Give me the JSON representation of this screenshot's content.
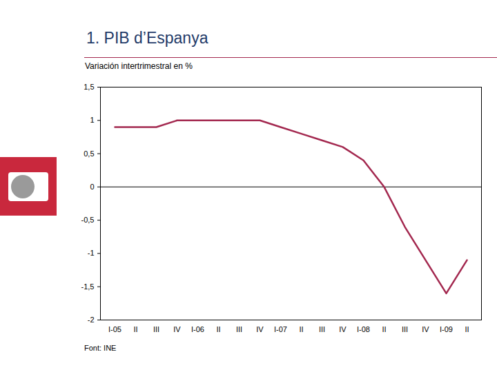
{
  "chart_data": {
    "type": "line",
    "title": "1. PIB d’Espanya",
    "subtitle": "Variación intertrimestral en %",
    "source": "Font: INE",
    "categories": [
      "I-05",
      "II",
      "III",
      "IV",
      "I-06",
      "II",
      "III",
      "IV",
      "I-07",
      "II",
      "III",
      "IV",
      "I-08",
      "II",
      "III",
      "IV",
      "I-09",
      "II"
    ],
    "values": [
      0.9,
      0.9,
      0.9,
      1.0,
      1.0,
      1.0,
      1.0,
      1.0,
      0.9,
      0.8,
      0.7,
      0.6,
      0.4,
      0.0,
      -0.6,
      -1.1,
      -1.6,
      -1.1
    ],
    "color": "#a3284f",
    "ylim": [
      -2,
      1.5
    ],
    "yticks": [
      -2,
      {
        "value": -1.5,
        "label": "-1,5"
      },
      -1,
      {
        "value": -0.5,
        "label": "-0,5"
      },
      0,
      {
        "value": 0.5,
        "label": "0,5"
      },
      1,
      {
        "value": 1.5,
        "label": "1,5"
      }
    ],
    "grid": false
  }
}
